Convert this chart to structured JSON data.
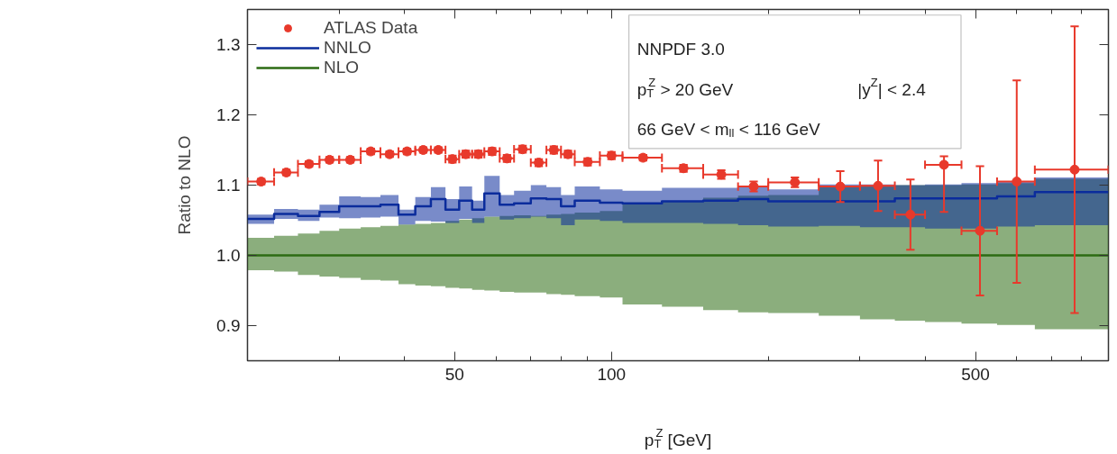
{
  "chart_data": {
    "type": "step",
    "xlabel": "p$_{T}$$^{Z}$ [GeV]",
    "ylabel": "Ratio to NLO",
    "annotations": [
      "NNPDF 3.0",
      "p$_{T}$$^{Z}$ > 20 GeV",
      "|y$^{Z}$| < 2.4",
      "66 GeV < m$_{ll}$ < 116 GeV"
    ],
    "log": "x",
    "grid": false,
    "legend": "top left",
    "xlim": [
      20,
      900
    ],
    "ylim": [
      0.85,
      1.35
    ],
    "xticks": [
      {
        "value": 30,
        "label": null
      },
      {
        "value": 40,
        "label": null
      },
      50,
      {
        "value": 60,
        "label": null
      },
      {
        "value": 70,
        "label": null
      },
      {
        "value": 80,
        "label": null
      },
      {
        "value": 90,
        "label": null
      },
      100,
      {
        "value": 200,
        "label": null
      },
      {
        "value": 300,
        "label": null
      },
      {
        "value": 400,
        "label": null
      },
      500,
      {
        "value": 600,
        "label": null
      },
      {
        "value": 700,
        "label": null
      },
      {
        "value": 800,
        "label": null
      }
    ],
    "yticks": [
      0.9,
      {
        "value": 1.0,
        "label": "1.0"
      },
      1.1,
      1.2,
      1.3
    ],
    "series": [
      {
        "name": "NLO",
        "color": "#2c6b13",
        "x": [
          20,
          22.5,
          25,
          27.5,
          30,
          33,
          36,
          39,
          42,
          45,
          48,
          51,
          54,
          57,
          61,
          65,
          70,
          75,
          80,
          85,
          95,
          105,
          125,
          150,
          175,
          200,
          250,
          300,
          350,
          400,
          470,
          550,
          650,
          900
        ],
        "values": [
          1.0,
          1.0,
          1.0,
          1.0,
          1.0,
          1.0,
          1.0,
          1.0,
          1.0,
          1.0,
          1.0,
          1.0,
          1.0,
          1.0,
          1.0,
          1.0,
          1.0,
          1.0,
          1.0,
          1.0,
          1.0,
          1.0,
          1.0,
          1.0,
          1.0,
          1.0,
          1.0,
          1.0,
          1.0,
          1.0,
          1.0,
          1.0,
          1.0,
          1.0
        ],
        "lower": [
          0.979,
          0.977,
          0.972,
          0.97,
          0.968,
          0.965,
          0.964,
          0.959,
          0.957,
          0.956,
          0.954,
          0.953,
          0.951,
          0.95,
          0.948,
          0.947,
          0.947,
          0.945,
          0.944,
          0.942,
          0.94,
          0.93,
          0.927,
          0.922,
          0.919,
          0.918,
          0.914,
          0.909,
          0.907,
          0.905,
          0.903,
          0.901,
          0.895,
          0.895
        ],
        "upper": [
          1.025,
          1.028,
          1.031,
          1.035,
          1.038,
          1.04,
          1.042,
          1.044,
          1.045,
          1.046,
          1.049,
          1.051,
          1.053,
          1.055,
          1.056,
          1.057,
          1.056,
          1.058,
          1.059,
          1.061,
          1.063,
          1.073,
          1.077,
          1.082,
          1.085,
          1.086,
          1.097,
          1.099,
          1.1,
          1.1,
          1.101,
          1.103,
          1.109,
          1.109
        ]
      },
      {
        "name": "NNLO",
        "color": "#0b2c9c",
        "x": [
          20,
          22.5,
          25,
          27.5,
          30,
          33,
          36,
          39,
          42,
          45,
          48,
          51,
          54,
          57,
          61,
          65,
          70,
          75,
          80,
          85,
          95,
          105,
          125,
          150,
          175,
          200,
          250,
          300,
          350,
          400,
          470,
          550,
          650,
          900
        ],
        "values": [
          1.052,
          1.059,
          1.056,
          1.062,
          1.07,
          1.07,
          1.072,
          1.058,
          1.07,
          1.08,
          1.065,
          1.078,
          1.065,
          1.088,
          1.072,
          1.074,
          1.081,
          1.08,
          1.07,
          1.078,
          1.075,
          1.074,
          1.077,
          1.078,
          1.08,
          1.077,
          1.077,
          1.077,
          1.081,
          1.081,
          1.081,
          1.084,
          1.09,
          1.09
        ],
        "lower": [
          1.045,
          1.052,
          1.049,
          1.054,
          1.053,
          1.054,
          1.055,
          1.044,
          1.049,
          1.048,
          1.046,
          1.052,
          1.046,
          1.055,
          1.051,
          1.053,
          1.055,
          1.053,
          1.043,
          1.051,
          1.049,
          1.046,
          1.046,
          1.045,
          1.043,
          1.041,
          1.042,
          1.04,
          1.04,
          1.038,
          1.038,
          1.041,
          1.043,
          1.043
        ],
        "upper": [
          1.058,
          1.066,
          1.065,
          1.072,
          1.084,
          1.083,
          1.086,
          1.065,
          1.083,
          1.097,
          1.08,
          1.098,
          1.078,
          1.113,
          1.086,
          1.092,
          1.1,
          1.097,
          1.086,
          1.098,
          1.094,
          1.092,
          1.096,
          1.096,
          1.098,
          1.094,
          1.101,
          1.101,
          1.1,
          1.101,
          1.103,
          1.105,
          1.111,
          1.111
        ]
      },
      {
        "name": "ATLAS Data",
        "type": "scatter",
        "color": "#e8392b",
        "marker": "circle",
        "x": [
          21.25,
          23.75,
          26.25,
          28.75,
          31.5,
          34.5,
          37.5,
          40.5,
          43.5,
          46.5,
          49.5,
          52.5,
          55.5,
          59,
          63,
          67.5,
          72.5,
          77.5,
          82.5,
          90,
          100,
          115,
          137.5,
          162.5,
          187.5,
          225,
          275,
          325,
          375,
          435,
          510,
          600,
          775
        ],
        "values": [
          1.105,
          1.118,
          1.13,
          1.136,
          1.136,
          1.148,
          1.144,
          1.148,
          1.15,
          1.15,
          1.137,
          1.144,
          1.144,
          1.148,
          1.138,
          1.151,
          1.132,
          1.15,
          1.144,
          1.133,
          1.142,
          1.139,
          1.124,
          1.115,
          1.098,
          1.104,
          1.098,
          1.099,
          1.058,
          1.129,
          1.035,
          1.105,
          1.122
        ],
        "errors": [
          0.004,
          0.004,
          0.004,
          0.004,
          0.004,
          0.004,
          0.004,
          0.004,
          0.004,
          0.004,
          0.005,
          0.005,
          0.005,
          0.005,
          0.005,
          0.005,
          0.005,
          0.005,
          0.005,
          0.005,
          0.005,
          0.004,
          0.005,
          0.006,
          0.007,
          0.007,
          0.022,
          0.036,
          0.05,
          [
            1.062,
            1.141
          ],
          0.092,
          0.144,
          0.204
        ],
        "xerrors": [
          1.25,
          1.25,
          1.25,
          1.25,
          1.5,
          1.5,
          1.5,
          1.5,
          1.5,
          1.5,
          1.5,
          1.5,
          1.5,
          2,
          2,
          2.5,
          2.5,
          2.5,
          2.5,
          5,
          5,
          10,
          12.5,
          12.5,
          12.5,
          25,
          25,
          25,
          25,
          35,
          40,
          50,
          125
        ]
      }
    ]
  }
}
